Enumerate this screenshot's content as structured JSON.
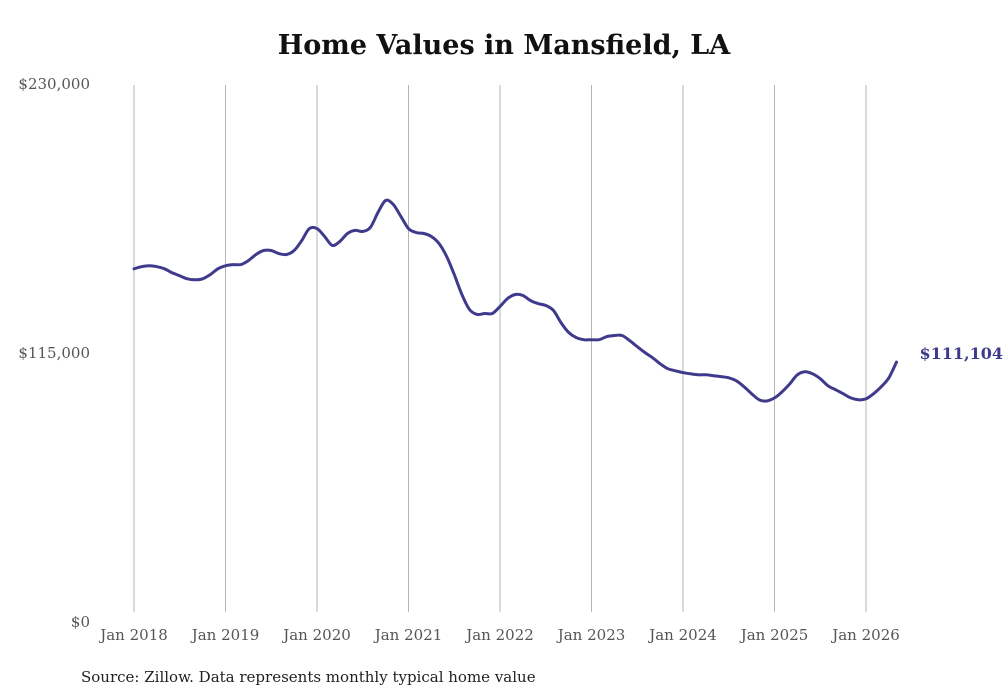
{
  "chart_data": {
    "type": "line",
    "title": "Home Values in Mansfield, LA",
    "xlabel": "",
    "ylabel": "",
    "ylim": [
      0,
      230000
    ],
    "yticks": [
      {
        "value": 0,
        "label": "$0"
      },
      {
        "value": 115000,
        "label": "$115,000"
      },
      {
        "value": 230000,
        "label": "$230,000"
      }
    ],
    "xticks": [
      {
        "value": 2018,
        "label": "Jan 2018"
      },
      {
        "value": 2019,
        "label": "Jan 2019"
      },
      {
        "value": 2020,
        "label": "Jan 2020"
      },
      {
        "value": 2021,
        "label": "Jan 2021"
      },
      {
        "value": 2022,
        "label": "Jan 2022"
      },
      {
        "value": 2023,
        "label": "Jan 2023"
      },
      {
        "value": 2024,
        "label": "Jan 2024"
      },
      {
        "value": 2025,
        "label": "Jan 2025"
      },
      {
        "value": 2026,
        "label": "Jan 2026"
      }
    ],
    "grid": "vertical",
    "x_start": "Jan 2018",
    "x_step": "monthly",
    "series": [
      {
        "name": "Typical home value",
        "color": "#3f3a8c",
        "values": [
          151000,
          151900,
          152300,
          151900,
          151000,
          149300,
          148000,
          146700,
          146300,
          146700,
          148500,
          151000,
          152300,
          152800,
          152800,
          154500,
          157100,
          158800,
          158800,
          157500,
          157100,
          158800,
          163100,
          168200,
          168200,
          164800,
          161000,
          162700,
          166100,
          167400,
          167000,
          168700,
          175100,
          180200,
          178500,
          173400,
          168200,
          166500,
          166100,
          164800,
          161800,
          156300,
          148500,
          140000,
          133600,
          131500,
          131900,
          131900,
          134900,
          138300,
          140000,
          139600,
          137400,
          136100,
          135300,
          133200,
          128000,
          123800,
          121600,
          120700,
          120700,
          120700,
          122000,
          122500,
          122500,
          120300,
          117700,
          115200,
          113000,
          110400,
          108300,
          107400,
          106600,
          106100,
          105700,
          105700,
          105300,
          104900,
          104400,
          103100,
          100600,
          97600,
          95000,
          94500,
          95800,
          98400,
          101800,
          105700,
          107000,
          106100,
          104000,
          101000,
          99300,
          97600,
          95800,
          95000,
          95400,
          97600,
          100600,
          104400,
          111104
        ]
      }
    ],
    "end_label": "$111,104"
  },
  "footer": {
    "source": "Source: Zillow. Data represents monthly typical home value"
  }
}
